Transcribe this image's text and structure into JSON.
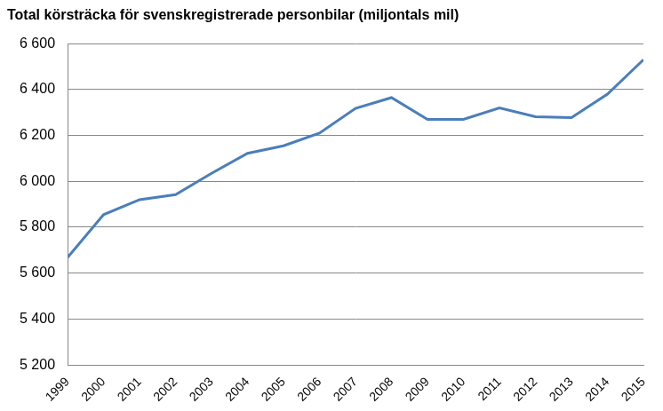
{
  "chart_data": {
    "type": "line",
    "title": "Total körsträcka för svenskregistrerade personbilar (miljontals mil)",
    "categories": [
      "1999",
      "2000",
      "2001",
      "2002",
      "2003",
      "2004",
      "2005",
      "2006",
      "2007",
      "2008",
      "2009",
      "2010",
      "2011",
      "2012",
      "2013",
      "2014",
      "2015"
    ],
    "values": [
      5668,
      5855,
      5920,
      5942,
      6035,
      6122,
      6155,
      6210,
      6318,
      6365,
      6270,
      6270,
      6320,
      6282,
      6278,
      6380,
      6530
    ],
    "color": "#4a7ebb",
    "marker": "none",
    "ylim": [
      5200,
      6600
    ],
    "yticks": [
      {
        "value": 5200,
        "label": "5 200"
      },
      {
        "value": 5400,
        "label": "5 400"
      },
      {
        "value": 5600,
        "label": "5 600"
      },
      {
        "value": 5800,
        "label": "5 800"
      },
      {
        "value": 6000,
        "label": "6 000"
      },
      {
        "value": 6200,
        "label": "6 200"
      },
      {
        "value": 6400,
        "label": "6 400"
      },
      {
        "value": 6600,
        "label": "6 600"
      }
    ],
    "grid": true
  }
}
